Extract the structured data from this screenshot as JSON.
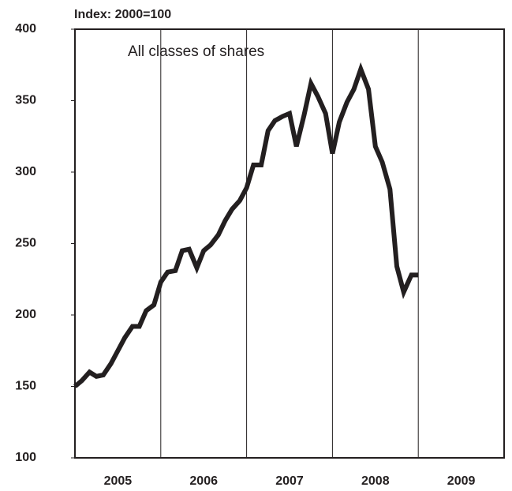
{
  "chart_data": {
    "type": "line",
    "title": "Index: 2000=100",
    "annotations": [
      "All classes of shares"
    ],
    "x": [
      2005,
      2005.08,
      2005.17,
      2005.25,
      2005.33,
      2005.42,
      2005.5,
      2005.58,
      2005.67,
      2005.75,
      2005.83,
      2005.92,
      2006,
      2006.08,
      2006.17,
      2006.25,
      2006.33,
      2006.42,
      2006.5,
      2006.58,
      2006.67,
      2006.75,
      2006.83,
      2006.92,
      2007,
      2007.08,
      2007.17,
      2007.25,
      2007.33,
      2007.42,
      2007.5,
      2007.58,
      2007.67,
      2007.75,
      2007.83,
      2007.92,
      2008,
      2008.08,
      2008.17,
      2008.25,
      2008.33,
      2008.42,
      2008.5,
      2008.58,
      2008.67,
      2008.75,
      2008.83,
      2008.92,
      2009
    ],
    "series": [
      {
        "color": "#231f20",
        "values": [
          150,
          154,
          160,
          157,
          158,
          166,
          175,
          184,
          192,
          192,
          203,
          207,
          223,
          230,
          231,
          245,
          246,
          233,
          245,
          249,
          256,
          266,
          274,
          280,
          289,
          305,
          305,
          329,
          336,
          339,
          341,
          318,
          340,
          362,
          353,
          341,
          313,
          335,
          349,
          358,
          372,
          358,
          318,
          307,
          288,
          234,
          216,
          228,
          228
        ]
      }
    ],
    "xlim": [
      2005,
      2010
    ],
    "xticks": [
      2005,
      2006,
      2007,
      2008,
      2009
    ],
    "ylim": [
      100,
      400
    ],
    "yticks": [
      100,
      150,
      200,
      250,
      300,
      350,
      400
    ]
  }
}
